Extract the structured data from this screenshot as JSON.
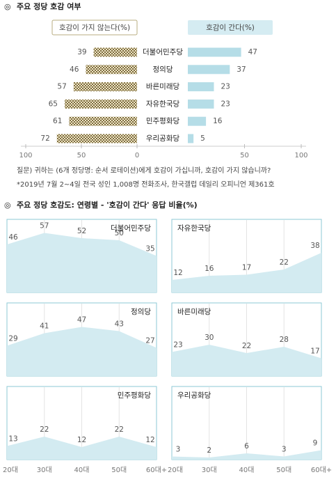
{
  "chart_data": [
    {
      "type": "diverging_bar",
      "title": "주요 정당 호감 여부",
      "categories": [
        "더불어민주당",
        "정의당",
        "바른미래당",
        "자유한국당",
        "민주평화당",
        "우리공화당"
      ],
      "series": [
        {
          "name": "호감이 가지 않는다(%)",
          "color": "#8a7a4a",
          "axis": "left",
          "values": [
            39,
            46,
            57,
            65,
            61,
            72
          ]
        },
        {
          "name": "호감이 간다(%)",
          "color": "#b5dde7",
          "axis": "right",
          "values": [
            47,
            37,
            23,
            23,
            16,
            5
          ]
        }
      ],
      "xlim": [
        0,
        100
      ],
      "xticks_left": [
        100,
        50,
        0
      ],
      "xticks_right": [
        50,
        100
      ],
      "notes": [
        "질문) 귀하는 (6개 정당명: 순서 로테이션)에게 호감이 가십니까, 호감이 가지 않습니까?",
        "*2019년 7월 2~4일 전국 성인 1,008명 전화조사, 한국갤럽 데일리 오피니언 제361호"
      ]
    },
    {
      "type": "small_multiples_area",
      "title": "주요 정당 호감도: 연령별 - '호감이 간다' 응답 비율(%)",
      "categories": [
        "20대",
        "30대",
        "40대",
        "50대",
        "60대+"
      ],
      "ylim": [
        0,
        70
      ],
      "color": "#d3ebf1",
      "border": "#8ecad6",
      "panels": [
        {
          "name": "더불어민주당",
          "values": [
            46,
            57,
            52,
            50,
            35
          ]
        },
        {
          "name": "자유한국당",
          "values": [
            12,
            16,
            17,
            22,
            38
          ]
        },
        {
          "name": "정의당",
          "values": [
            29,
            41,
            47,
            43,
            27
          ]
        },
        {
          "name": "바른미래당",
          "values": [
            23,
            30,
            22,
            28,
            17
          ]
        },
        {
          "name": "민주평화당",
          "values": [
            13,
            22,
            12,
            22,
            12
          ]
        },
        {
          "name": "우리공화당",
          "values": [
            3,
            2,
            6,
            3,
            9
          ]
        }
      ]
    }
  ]
}
